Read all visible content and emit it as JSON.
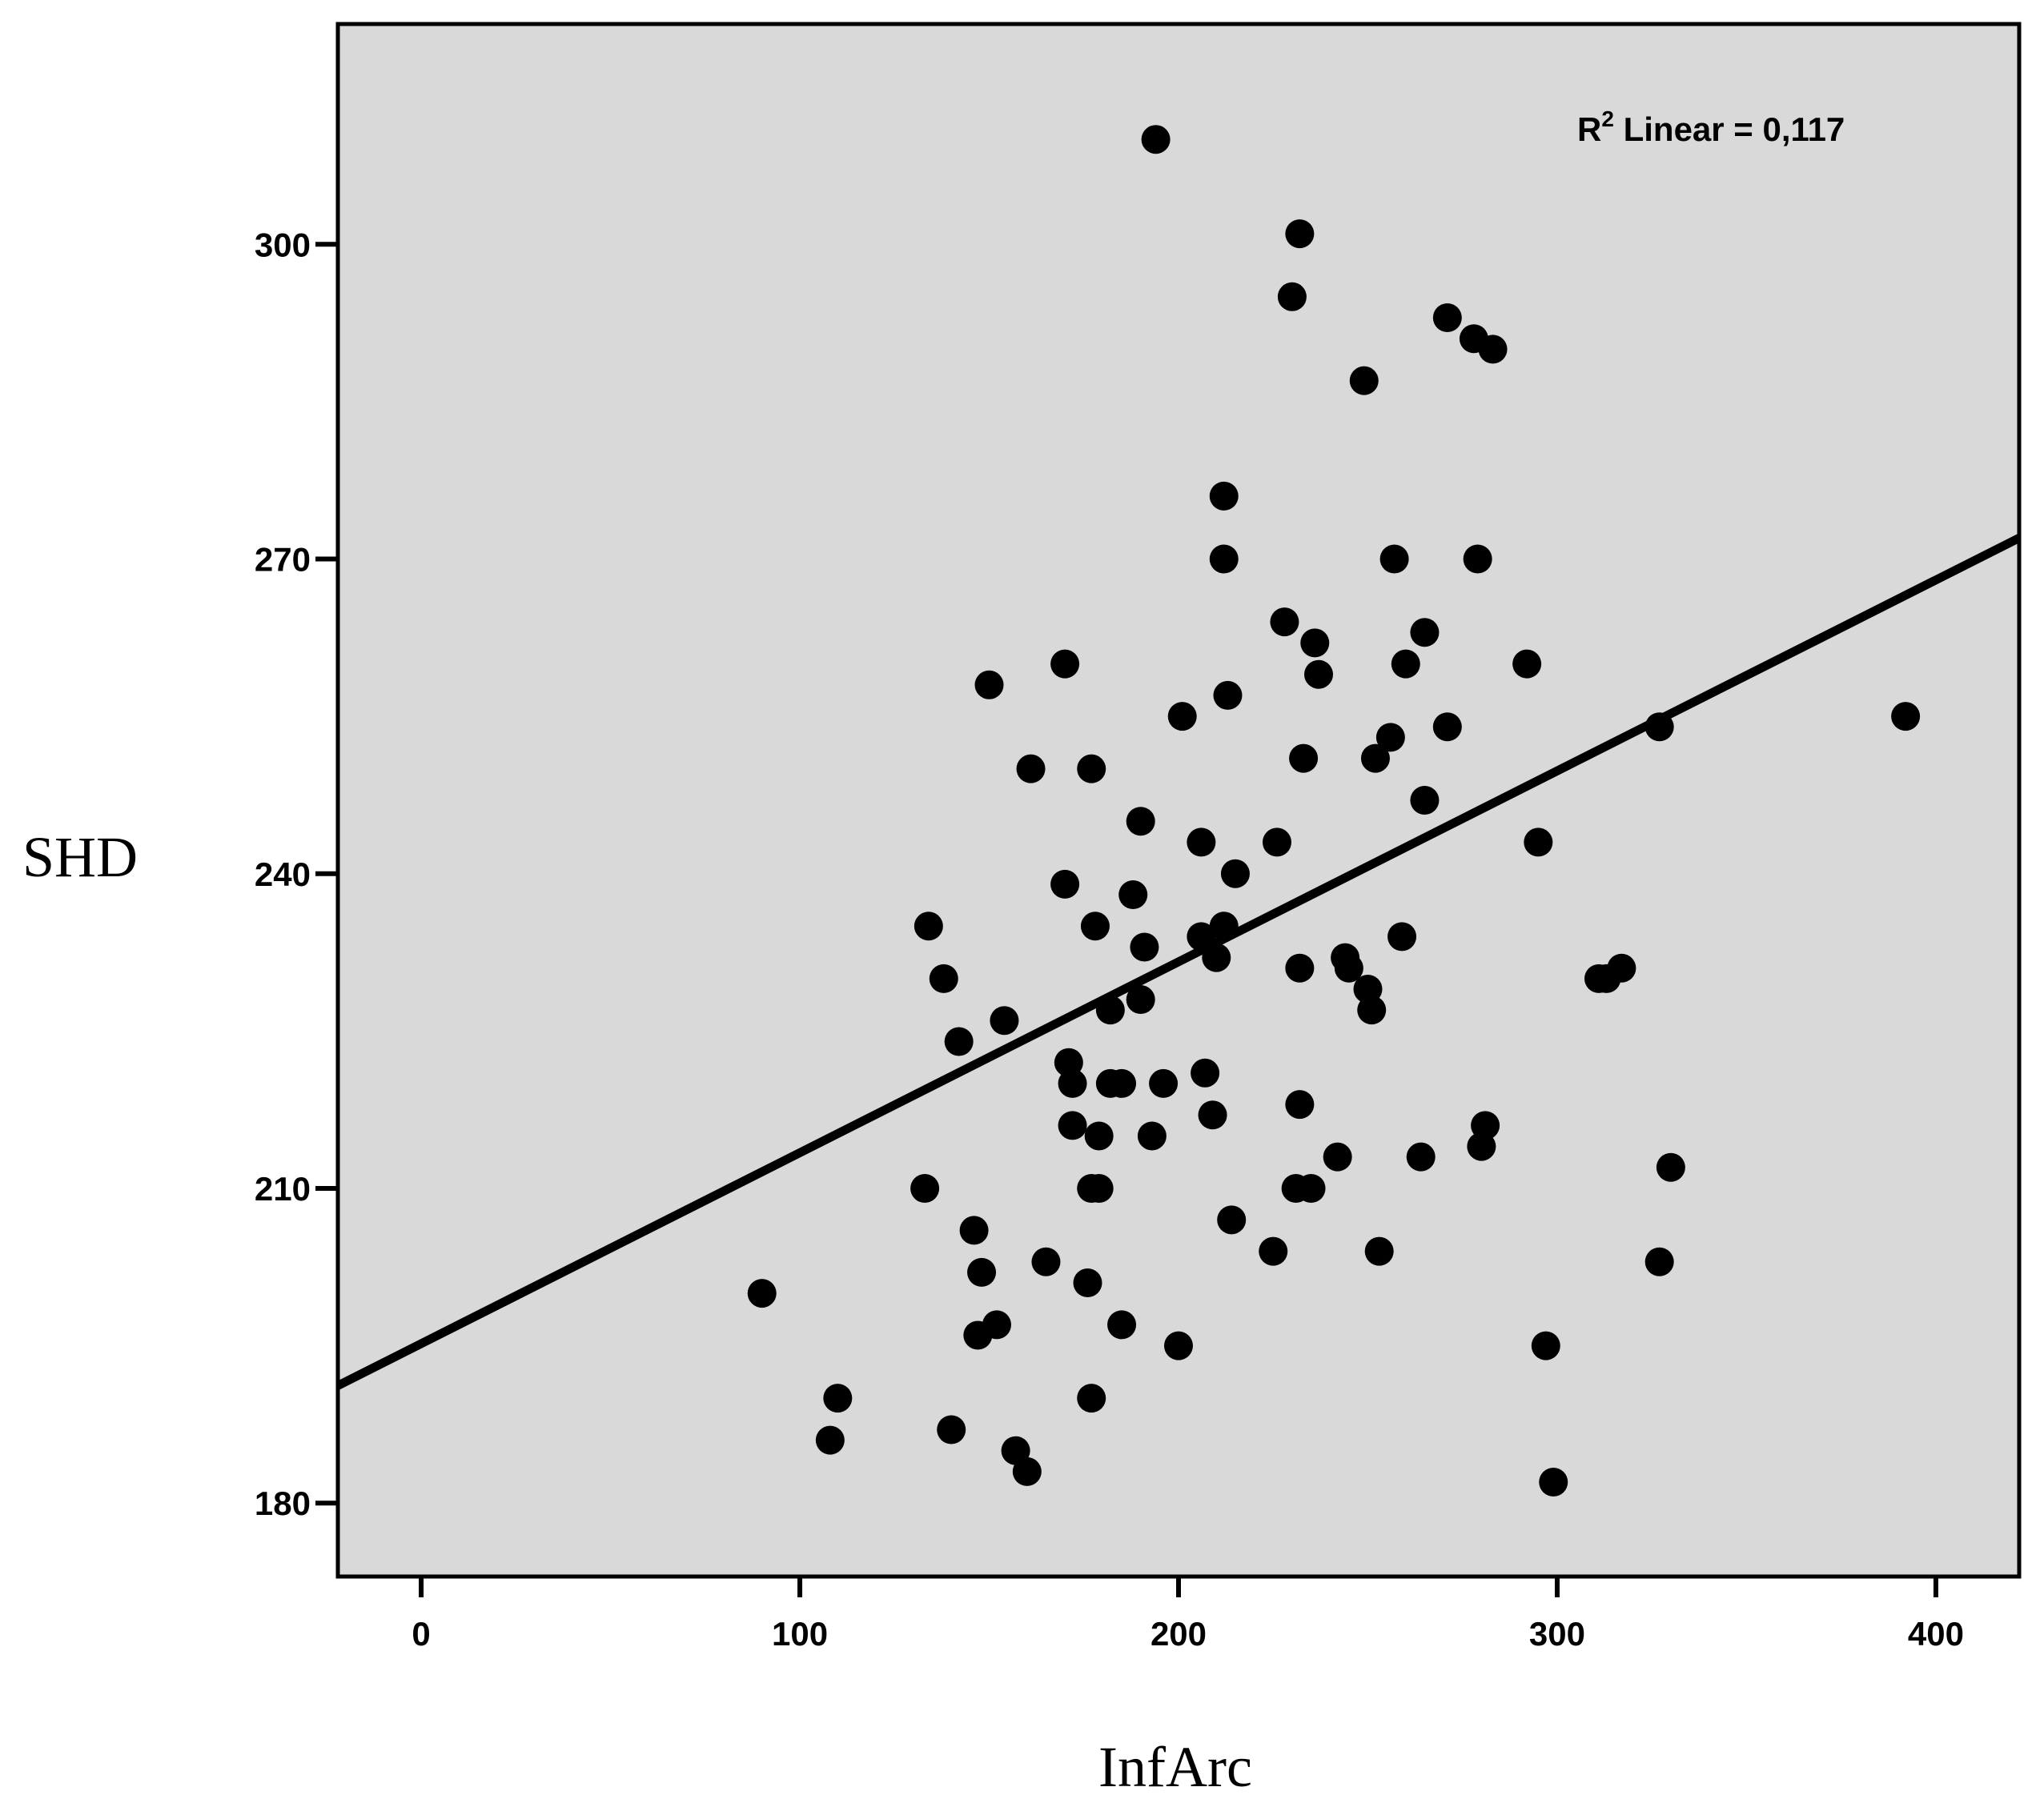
{
  "chart_data": {
    "type": "scatter",
    "title": "",
    "xlabel": "InfArc",
    "ylabel": "SHD",
    "xlim": [
      -22,
      422
    ],
    "ylim": [
      173,
      321
    ],
    "x_ticks": [
      "0",
      "100",
      "200",
      "300",
      "400"
    ],
    "y_ticks": [
      "180",
      "210",
      "240",
      "270",
      "300"
    ],
    "x_tick_values": [
      0,
      100,
      200,
      300,
      400
    ],
    "y_tick_values": [
      180,
      210,
      240,
      270,
      300
    ],
    "annotation": {
      "r_prefix": "R",
      "r_superscript": "2",
      "text": " Linear = 0,117"
    },
    "fit_line": {
      "slope": 0.182,
      "intercept": 195.2
    },
    "grid": false,
    "legend": "none",
    "colors": {
      "plot_background": "#d9d9d9",
      "points": "#000000",
      "line": "#000000"
    },
    "points": [
      {
        "x": 90,
        "y": 200
      },
      {
        "x": 108,
        "y": 186
      },
      {
        "x": 110,
        "y": 190
      },
      {
        "x": 133,
        "y": 210
      },
      {
        "x": 134,
        "y": 235
      },
      {
        "x": 138,
        "y": 230
      },
      {
        "x": 140,
        "y": 187
      },
      {
        "x": 142,
        "y": 224
      },
      {
        "x": 146,
        "y": 206
      },
      {
        "x": 147,
        "y": 196
      },
      {
        "x": 148,
        "y": 202
      },
      {
        "x": 150,
        "y": 258
      },
      {
        "x": 152,
        "y": 197
      },
      {
        "x": 154,
        "y": 226
      },
      {
        "x": 157,
        "y": 185
      },
      {
        "x": 160,
        "y": 183
      },
      {
        "x": 161,
        "y": 250
      },
      {
        "x": 165,
        "y": 203
      },
      {
        "x": 170,
        "y": 239
      },
      {
        "x": 170,
        "y": 260
      },
      {
        "x": 171,
        "y": 222
      },
      {
        "x": 172,
        "y": 220
      },
      {
        "x": 172,
        "y": 216
      },
      {
        "x": 176,
        "y": 201
      },
      {
        "x": 177,
        "y": 210
      },
      {
        "x": 177,
        "y": 250
      },
      {
        "x": 177,
        "y": 190
      },
      {
        "x": 178,
        "y": 235
      },
      {
        "x": 179,
        "y": 210
      },
      {
        "x": 179,
        "y": 215
      },
      {
        "x": 182,
        "y": 227
      },
      {
        "x": 182,
        "y": 220
      },
      {
        "x": 185,
        "y": 197
      },
      {
        "x": 185,
        "y": 220
      },
      {
        "x": 188,
        "y": 238
      },
      {
        "x": 190,
        "y": 245
      },
      {
        "x": 190,
        "y": 228
      },
      {
        "x": 191,
        "y": 233
      },
      {
        "x": 193,
        "y": 215
      },
      {
        "x": 194,
        "y": 310
      },
      {
        "x": 196,
        "y": 220
      },
      {
        "x": 200,
        "y": 195
      },
      {
        "x": 201,
        "y": 255
      },
      {
        "x": 206,
        "y": 243
      },
      {
        "x": 206,
        "y": 234
      },
      {
        "x": 207,
        "y": 221
      },
      {
        "x": 209,
        "y": 217
      },
      {
        "x": 210,
        "y": 232
      },
      {
        "x": 212,
        "y": 276
      },
      {
        "x": 212,
        "y": 270
      },
      {
        "x": 212,
        "y": 235
      },
      {
        "x": 213,
        "y": 257
      },
      {
        "x": 214,
        "y": 207
      },
      {
        "x": 215,
        "y": 240
      },
      {
        "x": 225,
        "y": 204
      },
      {
        "x": 226,
        "y": 243
      },
      {
        "x": 228,
        "y": 264
      },
      {
        "x": 230,
        "y": 295
      },
      {
        "x": 231,
        "y": 210
      },
      {
        "x": 232,
        "y": 301
      },
      {
        "x": 232,
        "y": 231
      },
      {
        "x": 232,
        "y": 218
      },
      {
        "x": 233,
        "y": 251
      },
      {
        "x": 235,
        "y": 210
      },
      {
        "x": 236,
        "y": 262
      },
      {
        "x": 237,
        "y": 259
      },
      {
        "x": 242,
        "y": 213
      },
      {
        "x": 244,
        "y": 232
      },
      {
        "x": 245,
        "y": 231
      },
      {
        "x": 249,
        "y": 287
      },
      {
        "x": 250,
        "y": 229
      },
      {
        "x": 251,
        "y": 227
      },
      {
        "x": 252,
        "y": 251
      },
      {
        "x": 253,
        "y": 204
      },
      {
        "x": 256,
        "y": 253
      },
      {
        "x": 257,
        "y": 270
      },
      {
        "x": 259,
        "y": 234
      },
      {
        "x": 260,
        "y": 260
      },
      {
        "x": 264,
        "y": 213
      },
      {
        "x": 265,
        "y": 263
      },
      {
        "x": 265,
        "y": 247
      },
      {
        "x": 271,
        "y": 293
      },
      {
        "x": 271,
        "y": 254
      },
      {
        "x": 278,
        "y": 291
      },
      {
        "x": 279,
        "y": 270
      },
      {
        "x": 280,
        "y": 214
      },
      {
        "x": 281,
        "y": 216
      },
      {
        "x": 283,
        "y": 290
      },
      {
        "x": 292,
        "y": 260
      },
      {
        "x": 295,
        "y": 243
      },
      {
        "x": 297,
        "y": 195
      },
      {
        "x": 299,
        "y": 182
      },
      {
        "x": 311,
        "y": 230
      },
      {
        "x": 313,
        "y": 230
      },
      {
        "x": 317,
        "y": 231
      },
      {
        "x": 327,
        "y": 203
      },
      {
        "x": 327,
        "y": 254
      },
      {
        "x": 330,
        "y": 212
      },
      {
        "x": 392,
        "y": 255
      }
    ]
  }
}
